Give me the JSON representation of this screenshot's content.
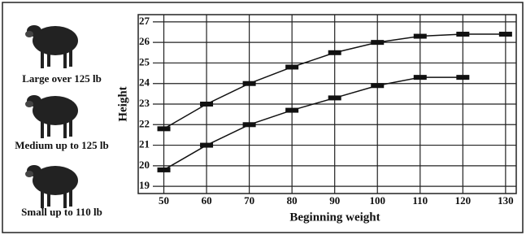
{
  "chart_data": {
    "type": "line",
    "x_label": "Beginning weight",
    "y_label": "Height",
    "annotations": [
      "Large over 125 lb",
      "Medium up to 125 lb",
      "Small up to 110 lb"
    ],
    "x": [
      50,
      60,
      70,
      80,
      90,
      100,
      110,
      120,
      130
    ],
    "series": [
      {
        "color": "#111111",
        "values": [
          21.8,
          23.0,
          24.0,
          24.8,
          25.5,
          26.0,
          26.3,
          26.4,
          26.4
        ]
      },
      {
        "color": "#111111",
        "values": [
          19.8,
          21.0,
          22.0,
          22.7,
          23.3,
          23.9,
          24.3,
          24.3,
          null
        ]
      }
    ],
    "xlim": [
      44,
      132.5
    ],
    "ylim": [
      18.65,
      27.35
    ],
    "xticks": [
      50,
      60,
      70,
      80,
      90,
      100,
      110,
      120,
      130
    ],
    "yticks": [
      19,
      20,
      21,
      22,
      23,
      24,
      25,
      26,
      27
    ],
    "grid": true
  }
}
